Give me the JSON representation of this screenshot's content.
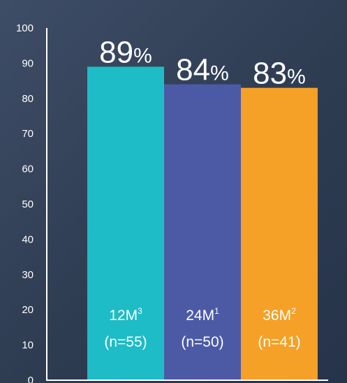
{
  "chart_data": {
    "type": "bar",
    "categories": [
      "12M",
      "24M",
      "36M"
    ],
    "category_superscripts": [
      "3",
      "1",
      "2"
    ],
    "sample_labels": [
      "(n=55)",
      "(n=50)",
      "(n=41)"
    ],
    "values": [
      89,
      84,
      83
    ],
    "value_labels": [
      {
        "number": "89",
        "unit": "%"
      },
      {
        "number": "84",
        "unit": "%"
      },
      {
        "number": "83",
        "unit": "%"
      }
    ],
    "colors": [
      "#1dbcc6",
      "#4c5aa6",
      "#f5a026"
    ],
    "yticks": [
      "0",
      "10",
      "20",
      "30",
      "40",
      "50",
      "60",
      "70",
      "80",
      "90",
      "100"
    ],
    "ylim": [
      0,
      100
    ],
    "grid": false,
    "title": "",
    "xlabel": "",
    "ylabel": ""
  },
  "colors": {
    "background": "#34435b",
    "axis": "#ffffff",
    "text": "#ffffff"
  }
}
